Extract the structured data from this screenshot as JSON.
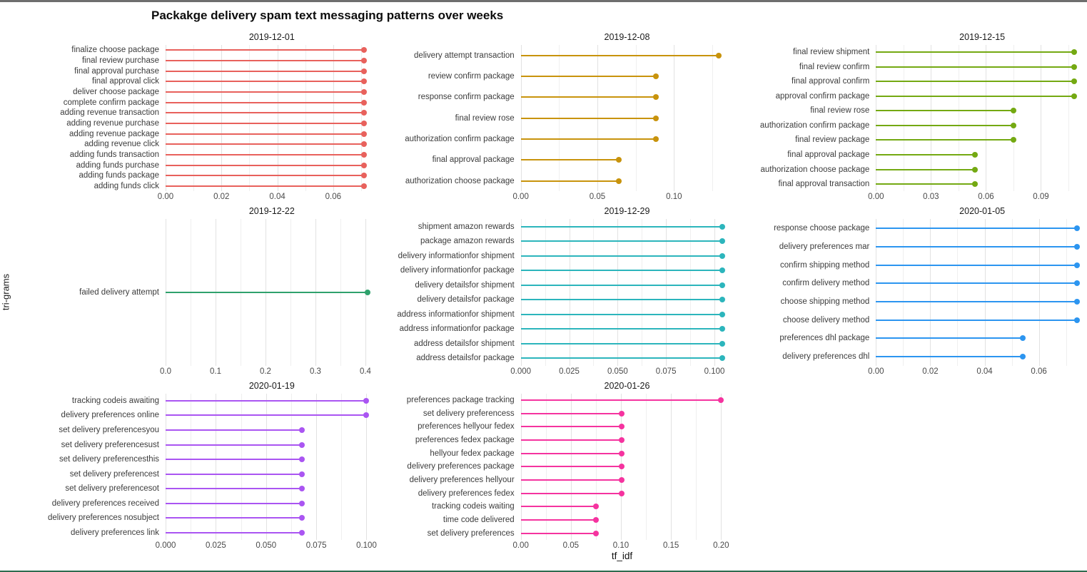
{
  "chart_data": {
    "type": "bar",
    "variant": "horizontal-lollipop-facets",
    "title": "Packakge delivery spam text messaging patterns over weeks",
    "xlabel": "tf_idf",
    "ylabel": "tri-grams",
    "grid": "major+minor vertical, light gray on white",
    "legend": "none (facet per week, color per facet)",
    "facets": [
      {
        "date": "2019-12-01",
        "color": "#E8615C",
        "xticks": {
          "labels": [
            "0.00",
            "0.02",
            "0.04",
            "0.06"
          ],
          "values": [
            0,
            0.02,
            0.04,
            0.06
          ]
        },
        "minor_step": 0.01,
        "xmax": 0.0735,
        "items": [
          {
            "label": "finalize choose package",
            "value": 0.071
          },
          {
            "label": "final review purchase",
            "value": 0.071
          },
          {
            "label": "final approval purchase",
            "value": 0.071
          },
          {
            "label": "final approval click",
            "value": 0.071
          },
          {
            "label": "deliver choose package",
            "value": 0.071
          },
          {
            "label": "complete confirm package",
            "value": 0.071
          },
          {
            "label": "adding revenue transaction",
            "value": 0.071
          },
          {
            "label": "adding revenue purchase",
            "value": 0.071
          },
          {
            "label": "adding revenue package",
            "value": 0.071
          },
          {
            "label": "adding revenue click",
            "value": 0.071
          },
          {
            "label": "adding funds transaction",
            "value": 0.071
          },
          {
            "label": "adding funds purchase",
            "value": 0.071
          },
          {
            "label": "adding funds package",
            "value": 0.071
          },
          {
            "label": "adding funds click",
            "value": 0.071
          }
        ]
      },
      {
        "date": "2019-12-08",
        "color": "#C8930C",
        "xticks": {
          "labels": [
            "0.00",
            "0.05",
            "0.10"
          ],
          "values": [
            0,
            0.05,
            0.1
          ]
        },
        "minor_step": 0.025,
        "xmax": 0.134,
        "items": [
          {
            "label": "delivery attempt transaction",
            "value": 0.129
          },
          {
            "label": "review confirm package",
            "value": 0.088
          },
          {
            "label": "response confirm package",
            "value": 0.088
          },
          {
            "label": "final review rose",
            "value": 0.088
          },
          {
            "label": "authorization confirm package",
            "value": 0.088
          },
          {
            "label": "final approval package",
            "value": 0.064
          },
          {
            "label": "authorization choose package",
            "value": 0.064
          }
        ]
      },
      {
        "date": "2019-12-15",
        "color": "#74A912",
        "xticks": {
          "labels": [
            "0.00",
            "0.03",
            "0.06",
            "0.09"
          ],
          "values": [
            0,
            0.03,
            0.06,
            0.09
          ]
        },
        "minor_step": 0.015,
        "xmax": 0.112,
        "items": [
          {
            "label": "final review shipment",
            "value": 0.108
          },
          {
            "label": "final review confirm",
            "value": 0.108
          },
          {
            "label": "final approval confirm",
            "value": 0.108
          },
          {
            "label": "approval confirm package",
            "value": 0.108
          },
          {
            "label": "final review rose",
            "value": 0.075
          },
          {
            "label": "authorization confirm package",
            "value": 0.075
          },
          {
            "label": "final review package",
            "value": 0.075
          },
          {
            "label": "final approval package",
            "value": 0.054
          },
          {
            "label": "authorization choose package",
            "value": 0.054
          },
          {
            "label": "final approval transaction",
            "value": 0.054
          }
        ]
      },
      {
        "date": "2019-12-22",
        "color": "#2FA16C",
        "xticks": {
          "labels": [
            "0.0",
            "0.1",
            "0.2",
            "0.3",
            "0.4"
          ],
          "values": [
            0,
            0.1,
            0.2,
            0.3,
            0.4
          ]
        },
        "minor_step": 0.05,
        "xmax": 0.411,
        "items": [
          {
            "label": "failed delivery attempt",
            "value": 0.405
          }
        ]
      },
      {
        "date": "2019-12-29",
        "color": "#2CB5BC",
        "xticks": {
          "labels": [
            "0.000",
            "0.025",
            "0.050",
            "0.075",
            "0.100"
          ],
          "values": [
            0,
            0.025,
            0.05,
            0.075,
            0.1
          ]
        },
        "minor_step": 0.0125,
        "xmax": 0.106,
        "items": [
          {
            "label": "shipment amazon rewards",
            "value": 0.104
          },
          {
            "label": "package amazon rewards",
            "value": 0.104
          },
          {
            "label": "delivery informationfor shipment",
            "value": 0.104
          },
          {
            "label": "delivery informationfor package",
            "value": 0.104
          },
          {
            "label": "delivery detailsfor shipment",
            "value": 0.104
          },
          {
            "label": "delivery detailsfor package",
            "value": 0.104
          },
          {
            "label": "address informationfor shipment",
            "value": 0.104
          },
          {
            "label": "address informationfor package",
            "value": 0.104
          },
          {
            "label": "address detailsfor shipment",
            "value": 0.104
          },
          {
            "label": "address detailsfor package",
            "value": 0.104
          }
        ]
      },
      {
        "date": "2020-01-05",
        "color": "#2C95F0",
        "xticks": {
          "labels": [
            "0.00",
            "0.02",
            "0.04",
            "0.06"
          ],
          "values": [
            0,
            0.02,
            0.04,
            0.06
          ]
        },
        "minor_step": 0.01,
        "xmax": 0.0756,
        "items": [
          {
            "label": "response choose package",
            "value": 0.074
          },
          {
            "label": "delivery preferences mar",
            "value": 0.074
          },
          {
            "label": "confirm shipping method",
            "value": 0.074
          },
          {
            "label": "confirm delivery method",
            "value": 0.074
          },
          {
            "label": "choose shipping method",
            "value": 0.074
          },
          {
            "label": "choose delivery method",
            "value": 0.074
          },
          {
            "label": "preferences dhl package",
            "value": 0.054
          },
          {
            "label": "delivery preferences dhl",
            "value": 0.054
          }
        ]
      },
      {
        "date": "2020-01-19",
        "color": "#AA55F2",
        "xticks": {
          "labels": [
            "0.000",
            "0.025",
            "0.050",
            "0.075",
            "0.100"
          ],
          "values": [
            0,
            0.025,
            0.05,
            0.075,
            0.1
          ]
        },
        "minor_step": 0.0125,
        "xmax": 0.1022,
        "items": [
          {
            "label": "tracking codeis awaiting",
            "value": 0.1
          },
          {
            "label": "delivery preferences online",
            "value": 0.1
          },
          {
            "label": "set delivery preferencesyou",
            "value": 0.068
          },
          {
            "label": "set delivery preferencesust",
            "value": 0.068
          },
          {
            "label": "set delivery preferencesthis",
            "value": 0.068
          },
          {
            "label": "set delivery preferencest",
            "value": 0.068
          },
          {
            "label": "set delivery preferencesot",
            "value": 0.068
          },
          {
            "label": "delivery preferences received",
            "value": 0.068
          },
          {
            "label": "delivery preferences nosubject",
            "value": 0.068
          },
          {
            "label": "delivery preferences link",
            "value": 0.068
          }
        ]
      },
      {
        "date": "2020-01-26",
        "color": "#F5339F",
        "xticks": {
          "labels": [
            "0.00",
            "0.05",
            "0.10",
            "0.15",
            "0.20"
          ],
          "values": [
            0,
            0.05,
            0.1,
            0.15,
            0.2
          ]
        },
        "minor_step": 0.025,
        "xmax": 0.205,
        "items": [
          {
            "label": "preferences package tracking",
            "value": 0.2
          },
          {
            "label": "set delivery preferencess",
            "value": 0.101
          },
          {
            "label": "preferences hellyour fedex",
            "value": 0.101
          },
          {
            "label": "preferences fedex package",
            "value": 0.101
          },
          {
            "label": "hellyour fedex package",
            "value": 0.101
          },
          {
            "label": "delivery preferences package",
            "value": 0.101
          },
          {
            "label": "delivery preferences hellyour",
            "value": 0.101
          },
          {
            "label": "delivery preferences fedex",
            "value": 0.101
          },
          {
            "label": "tracking codeis waiting",
            "value": 0.075
          },
          {
            "label": "time code delivered",
            "value": 0.075
          },
          {
            "label": "set delivery preferences",
            "value": 0.075
          }
        ]
      }
    ]
  }
}
